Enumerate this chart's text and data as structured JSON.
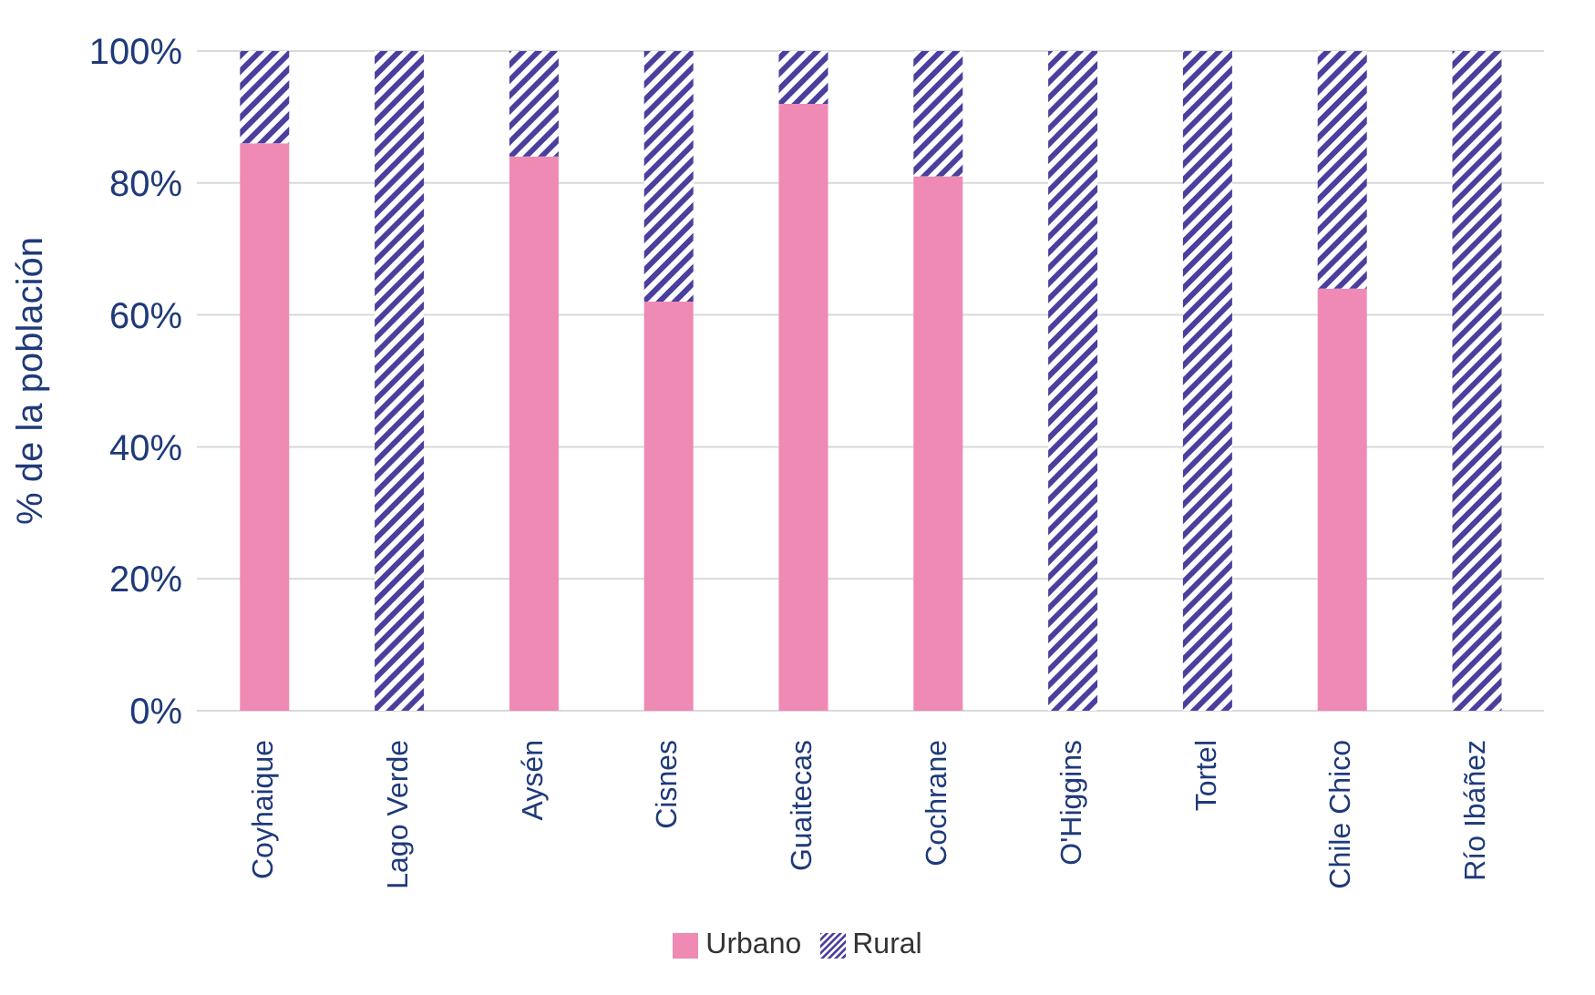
{
  "chart_data": {
    "type": "bar",
    "stacked": true,
    "ylabel": "% de la población",
    "categories": [
      "Coyhaique",
      "Lago Verde",
      "Aysén",
      "Cisnes",
      "Guaitecas",
      "Cochrane",
      "O'Higgins",
      "Tortel",
      "Chile Chico",
      "Río Ibáñez"
    ],
    "series": [
      {
        "name": "Urbano",
        "color": "#ee8ab4",
        "values": [
          86,
          0,
          84,
          62,
          92,
          81,
          0,
          0,
          64,
          0
        ]
      },
      {
        "name": "Rural",
        "color": "#4b3f9e",
        "values": [
          14,
          100,
          16,
          38,
          8,
          19,
          100,
          100,
          36,
          100
        ]
      }
    ],
    "ylim": [
      0,
      100
    ],
    "yticks": [
      {
        "value": 0,
        "label": "0%"
      },
      {
        "value": 20,
        "label": "20%"
      },
      {
        "value": 40,
        "label": "40%"
      },
      {
        "value": 60,
        "label": "60%"
      },
      {
        "value": 80,
        "label": "80%"
      },
      {
        "value": 100,
        "label": "100%"
      }
    ],
    "grid": "y",
    "legend": "bottom"
  }
}
